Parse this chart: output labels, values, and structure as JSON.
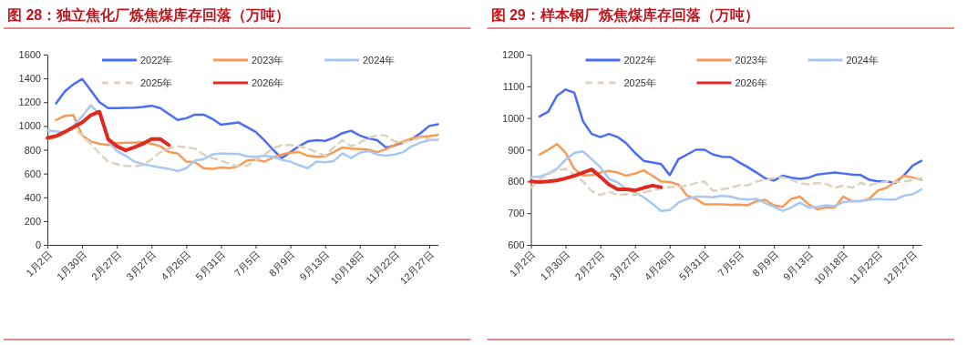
{
  "chart_data": [
    {
      "type": "line",
      "title": "图 28：独立焦化厂炼焦煤库存回落（万吨）",
      "categories": [
        "1月2日",
        null,
        null,
        null,
        "1月30日",
        null,
        null,
        null,
        "2月27日",
        null,
        null,
        null,
        "3月27日",
        null,
        null,
        null,
        "4月26日",
        null,
        null,
        null,
        "5月31日",
        null,
        null,
        null,
        "7月5日",
        null,
        null,
        null,
        "8月9日",
        null,
        null,
        null,
        "9月13日",
        null,
        null,
        null,
        "10月18日",
        null,
        null,
        null,
        "11月22日",
        null,
        null,
        null,
        "12月27日",
        null
      ],
      "ylim": [
        0,
        1600
      ],
      "yticks": [
        0,
        200,
        400,
        600,
        800,
        1000,
        1200,
        1400,
        1600
      ],
      "legend": "top",
      "grid": false,
      "series": [
        {
          "name": "2022年",
          "color": "#4a6cf7",
          "values": [
            null,
            1190,
            1290,
            1350,
            1395,
            1300,
            1200,
            1150,
            1150,
            1152,
            1155,
            1160,
            1170,
            1150,
            1100,
            1050,
            1065,
            1095,
            1095,
            1060,
            1010,
            1020,
            1030,
            990,
            950,
            880,
            800,
            730,
            780,
            830,
            870,
            880,
            875,
            900,
            940,
            960,
            920,
            895,
            880,
            820,
            835,
            860,
            890,
            940,
            1000,
            1015
          ]
        },
        {
          "name": "2023年",
          "color": "#f79a56",
          "values": [
            null,
            1050,
            1085,
            1090,
            920,
            870,
            850,
            840,
            855,
            860,
            860,
            865,
            850,
            830,
            780,
            770,
            700,
            695,
            645,
            640,
            650,
            645,
            660,
            710,
            715,
            700,
            735,
            760,
            775,
            780,
            750,
            740,
            745,
            780,
            820,
            810,
            805,
            800,
            780,
            805,
            840,
            870,
            895,
            910,
            915,
            925
          ]
        },
        {
          "name": "2024年",
          "color": "#a6c8f5",
          "values": [
            960,
            955,
            945,
            1000,
            1080,
            1175,
            1100,
            870,
            790,
            750,
            700,
            680,
            665,
            650,
            640,
            620,
            645,
            710,
            720,
            760,
            770,
            765,
            765,
            745,
            740,
            750,
            740,
            715,
            700,
            670,
            645,
            700,
            695,
            705,
            770,
            730,
            775,
            790,
            760,
            750,
            760,
            780,
            830,
            860,
            880,
            885
          ]
        },
        {
          "name": "2025年",
          "color": "#ddd2bf",
          "line_style": "dashed",
          "values": [
            890,
            900,
            940,
            990,
            920,
            850,
            770,
            700,
            680,
            665,
            660,
            670,
            720,
            780,
            810,
            830,
            820,
            810,
            760,
            730,
            710,
            680,
            660,
            665,
            710,
            760,
            810,
            840,
            840,
            830,
            810,
            780,
            750,
            820,
            880,
            830,
            860,
            900,
            920,
            920,
            870,
            860,
            880,
            900,
            890,
            885
          ]
        },
        {
          "name": "2026年",
          "color": "#e02a20",
          "values": [
            900,
            915,
            950,
            990,
            1030,
            1090,
            1120,
            890,
            830,
            795,
            820,
            850,
            890,
            890,
            840,
            null,
            null,
            null,
            null,
            null,
            null,
            null,
            null,
            null,
            null,
            null,
            null,
            null,
            null,
            null,
            null,
            null,
            null,
            null,
            null,
            null,
            null,
            null,
            null,
            null,
            null,
            null,
            null,
            null,
            null,
            null
          ]
        }
      ]
    },
    {
      "type": "line",
      "title": "图 29：样本钢厂炼焦煤库存回落（万吨）",
      "categories": [
        "1月2日",
        null,
        null,
        null,
        "1月30日",
        null,
        null,
        null,
        "2月27日",
        null,
        null,
        null,
        "3月27日",
        null,
        null,
        null,
        "4月26日",
        null,
        null,
        null,
        "5月31日",
        null,
        null,
        null,
        "7月5日",
        null,
        null,
        null,
        "8月9日",
        null,
        null,
        null,
        "9月13日",
        null,
        null,
        null,
        "10月18日",
        null,
        null,
        null,
        "11月22日",
        null,
        null,
        null,
        "12月27日",
        null
      ],
      "ylim": [
        600,
        1200
      ],
      "yticks": [
        600,
        700,
        800,
        900,
        1000,
        1100,
        1200
      ],
      "legend": "top",
      "grid": false,
      "series": [
        {
          "name": "2022年",
          "color": "#4a6cf7",
          "values": [
            null,
            1005,
            1020,
            1070,
            1090,
            1080,
            990,
            950,
            940,
            950,
            940,
            920,
            890,
            865,
            860,
            855,
            820,
            870,
            885,
            900,
            900,
            885,
            878,
            877,
            860,
            845,
            828,
            810,
            803,
            818,
            812,
            808,
            812,
            822,
            825,
            828,
            825,
            822,
            820,
            805,
            800,
            800,
            795,
            820,
            850,
            865
          ]
        },
        {
          "name": "2023年",
          "color": "#f79a56",
          "values": [
            null,
            885,
            900,
            918,
            890,
            840,
            818,
            820,
            828,
            833,
            828,
            818,
            825,
            835,
            818,
            800,
            798,
            790,
            755,
            745,
            728,
            728,
            728,
            726,
            727,
            725,
            738,
            742,
            725,
            720,
            745,
            752,
            728,
            712,
            718,
            718,
            752,
            738,
            738,
            745,
            772,
            780,
            800,
            818,
            812,
            805
          ]
        },
        {
          "name": "2024年",
          "color": "#a6c8f5",
          "values": [
            813,
            815,
            825,
            840,
            868,
            890,
            895,
            870,
            845,
            808,
            797,
            775,
            765,
            750,
            730,
            707,
            710,
            733,
            745,
            752,
            752,
            750,
            755,
            752,
            745,
            743,
            745,
            732,
            720,
            707,
            718,
            733,
            718,
            720,
            725,
            722,
            735,
            738,
            738,
            742,
            745,
            743,
            743,
            755,
            760,
            775
          ]
        },
        {
          "name": "2025年",
          "color": "#ddd2bf",
          "line_style": "dashed",
          "values": [
            780,
            808,
            822,
            835,
            840,
            820,
            800,
            770,
            757,
            768,
            757,
            760,
            758,
            765,
            772,
            778,
            782,
            783,
            787,
            795,
            800,
            770,
            775,
            780,
            788,
            788,
            800,
            805,
            810,
            813,
            805,
            795,
            790,
            795,
            793,
            780,
            787,
            780,
            795,
            788,
            795,
            800,
            798,
            800,
            805,
            810
          ]
        },
        {
          "name": "2026年",
          "color": "#e02a20",
          "values": [
            800,
            798,
            800,
            803,
            810,
            818,
            828,
            838,
            815,
            790,
            775,
            775,
            772,
            780,
            787,
            782,
            null,
            null,
            null,
            null,
            null,
            null,
            null,
            null,
            null,
            null,
            null,
            null,
            null,
            null,
            null,
            null,
            null,
            null,
            null,
            null,
            null,
            null,
            null,
            null,
            null,
            null,
            null,
            null,
            null,
            null
          ]
        }
      ]
    }
  ]
}
